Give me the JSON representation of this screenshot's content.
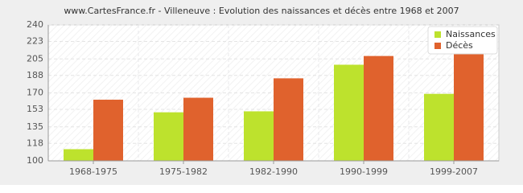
{
  "chart_data": {
    "type": "bar",
    "title": "www.CartesFrance.fr - Villeneuve : Evolution des naissances et décès entre 1968 et 2007",
    "categories": [
      "1968-1975",
      "1975-1982",
      "1982-1990",
      "1990-1999",
      "1999-2007"
    ],
    "series": [
      {
        "name": "Naissances",
        "color": "#bde22d",
        "values": [
          112,
          150,
          151,
          199,
          169
        ]
      },
      {
        "name": "Décès",
        "color": "#e0622d",
        "values": [
          163,
          165,
          185,
          208,
          214
        ]
      }
    ],
    "ylim": [
      100,
      240
    ],
    "yticks": [
      100,
      118,
      135,
      153,
      170,
      188,
      205,
      223,
      240
    ],
    "grid": true,
    "legend": "top-right"
  }
}
